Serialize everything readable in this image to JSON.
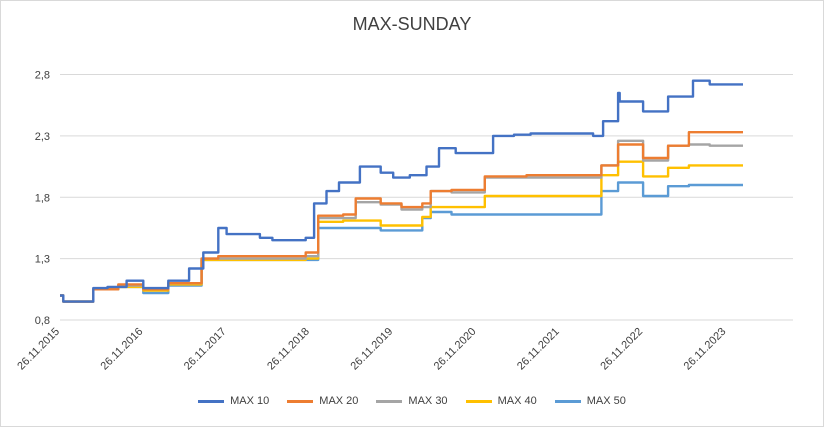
{
  "chart_data": {
    "type": "line",
    "title": "MAX-SUNDAY",
    "xlabel": "",
    "ylabel": "",
    "ylim": [
      0.8,
      3.0
    ],
    "yticks": [
      "0,8",
      "1,3",
      "1,8",
      "2,3",
      "2,8"
    ],
    "yticks_values": [
      0.8,
      1.3,
      1.8,
      2.3,
      2.8
    ],
    "xticks": [
      "26.11.2015",
      "26.11.2016",
      "26.11.2017",
      "26.11.2018",
      "26.11.2019",
      "26.11.2020",
      "26.11.2021",
      "26.11.2022",
      "26.11.2023"
    ],
    "xlim": [
      2015.9,
      2024.7
    ],
    "grid": "horizontal",
    "legend_position": "bottom",
    "series": [
      {
        "name": "MAX 10",
        "color": "#4472C4",
        "points": [
          [
            2015.9,
            1.0
          ],
          [
            2015.94,
            0.95
          ],
          [
            2016.3,
            1.06
          ],
          [
            2016.47,
            1.07
          ],
          [
            2016.7,
            1.12
          ],
          [
            2016.9,
            1.06
          ],
          [
            2017.2,
            1.12
          ],
          [
            2017.45,
            1.22
          ],
          [
            2017.62,
            1.35
          ],
          [
            2017.8,
            1.55
          ],
          [
            2017.9,
            1.5
          ],
          [
            2018.3,
            1.47
          ],
          [
            2018.45,
            1.45
          ],
          [
            2018.85,
            1.47
          ],
          [
            2018.95,
            1.75
          ],
          [
            2019.1,
            1.85
          ],
          [
            2019.25,
            1.92
          ],
          [
            2019.5,
            2.05
          ],
          [
            2019.75,
            2.0
          ],
          [
            2019.9,
            1.96
          ],
          [
            2020.1,
            1.98
          ],
          [
            2020.3,
            2.05
          ],
          [
            2020.45,
            2.2
          ],
          [
            2020.65,
            2.16
          ],
          [
            2021.0,
            2.16
          ],
          [
            2021.1,
            2.3
          ],
          [
            2021.35,
            2.31
          ],
          [
            2021.55,
            2.32
          ],
          [
            2022.0,
            2.32
          ],
          [
            2022.3,
            2.3
          ],
          [
            2022.42,
            2.42
          ],
          [
            2022.6,
            2.65
          ],
          [
            2022.62,
            2.58
          ],
          [
            2022.9,
            2.5
          ],
          [
            2023.2,
            2.62
          ],
          [
            2023.5,
            2.75
          ],
          [
            2023.7,
            2.72
          ],
          [
            2024.1,
            2.72
          ]
        ]
      },
      {
        "name": "MAX 20",
        "color": "#ED7D31",
        "points": [
          [
            2015.9,
            1.0
          ],
          [
            2015.94,
            0.95
          ],
          [
            2016.3,
            1.05
          ],
          [
            2016.6,
            1.09
          ],
          [
            2016.9,
            1.05
          ],
          [
            2017.2,
            1.1
          ],
          [
            2017.6,
            1.3
          ],
          [
            2017.8,
            1.32
          ],
          [
            2018.2,
            1.32
          ],
          [
            2018.85,
            1.35
          ],
          [
            2019.0,
            1.65
          ],
          [
            2019.3,
            1.66
          ],
          [
            2019.45,
            1.79
          ],
          [
            2019.75,
            1.75
          ],
          [
            2020.0,
            1.72
          ],
          [
            2020.25,
            1.75
          ],
          [
            2020.35,
            1.85
          ],
          [
            2020.6,
            1.86
          ],
          [
            2020.8,
            1.86
          ],
          [
            2021.0,
            1.97
          ],
          [
            2021.5,
            1.98
          ],
          [
            2022.2,
            1.98
          ],
          [
            2022.4,
            2.06
          ],
          [
            2022.6,
            2.23
          ],
          [
            2022.9,
            2.12
          ],
          [
            2023.2,
            2.22
          ],
          [
            2023.45,
            2.33
          ],
          [
            2023.7,
            2.33
          ],
          [
            2024.1,
            2.33
          ]
        ]
      },
      {
        "name": "MAX 30",
        "color": "#A5A5A5",
        "points": [
          [
            2015.9,
            1.0
          ],
          [
            2015.94,
            0.95
          ],
          [
            2016.3,
            1.05
          ],
          [
            2016.6,
            1.08
          ],
          [
            2016.9,
            1.05
          ],
          [
            2017.2,
            1.1
          ],
          [
            2017.6,
            1.3
          ],
          [
            2017.8,
            1.3
          ],
          [
            2018.2,
            1.3
          ],
          [
            2018.85,
            1.32
          ],
          [
            2019.0,
            1.63
          ],
          [
            2019.3,
            1.63
          ],
          [
            2019.45,
            1.76
          ],
          [
            2019.75,
            1.74
          ],
          [
            2020.0,
            1.7
          ],
          [
            2020.25,
            1.72
          ],
          [
            2020.35,
            1.85
          ],
          [
            2020.6,
            1.84
          ],
          [
            2020.8,
            1.84
          ],
          [
            2021.0,
            1.96
          ],
          [
            2021.5,
            1.96
          ],
          [
            2022.2,
            1.96
          ],
          [
            2022.4,
            2.06
          ],
          [
            2022.6,
            2.26
          ],
          [
            2022.9,
            2.1
          ],
          [
            2023.2,
            2.22
          ],
          [
            2023.45,
            2.23
          ],
          [
            2023.7,
            2.22
          ],
          [
            2024.1,
            2.22
          ]
        ]
      },
      {
        "name": "MAX 40",
        "color": "#FFC000",
        "points": [
          [
            2015.9,
            1.0
          ],
          [
            2015.94,
            0.95
          ],
          [
            2016.3,
            1.05
          ],
          [
            2016.6,
            1.07
          ],
          [
            2016.9,
            1.04
          ],
          [
            2017.2,
            1.09
          ],
          [
            2017.6,
            1.29
          ],
          [
            2017.8,
            1.29
          ],
          [
            2018.2,
            1.29
          ],
          [
            2018.85,
            1.3
          ],
          [
            2019.0,
            1.6
          ],
          [
            2019.3,
            1.61
          ],
          [
            2019.45,
            1.61
          ],
          [
            2019.75,
            1.57
          ],
          [
            2020.0,
            1.57
          ],
          [
            2020.25,
            1.64
          ],
          [
            2020.35,
            1.72
          ],
          [
            2020.6,
            1.72
          ],
          [
            2020.8,
            1.72
          ],
          [
            2021.0,
            1.81
          ],
          [
            2021.5,
            1.81
          ],
          [
            2022.2,
            1.81
          ],
          [
            2022.4,
            1.98
          ],
          [
            2022.6,
            2.09
          ],
          [
            2022.9,
            1.97
          ],
          [
            2023.2,
            2.04
          ],
          [
            2023.45,
            2.06
          ],
          [
            2023.7,
            2.06
          ],
          [
            2024.1,
            2.06
          ]
        ]
      },
      {
        "name": "MAX 50",
        "color": "#5B9BD5",
        "points": [
          [
            2015.9,
            1.0
          ],
          [
            2015.94,
            0.95
          ],
          [
            2016.3,
            1.05
          ],
          [
            2016.6,
            1.07
          ],
          [
            2016.9,
            1.02
          ],
          [
            2017.2,
            1.08
          ],
          [
            2017.6,
            1.29
          ],
          [
            2017.8,
            1.29
          ],
          [
            2018.2,
            1.29
          ],
          [
            2018.85,
            1.29
          ],
          [
            2019.0,
            1.55
          ],
          [
            2019.3,
            1.55
          ],
          [
            2019.45,
            1.55
          ],
          [
            2019.75,
            1.53
          ],
          [
            2020.0,
            1.53
          ],
          [
            2020.25,
            1.63
          ],
          [
            2020.35,
            1.68
          ],
          [
            2020.6,
            1.66
          ],
          [
            2020.8,
            1.66
          ],
          [
            2021.0,
            1.66
          ],
          [
            2021.5,
            1.66
          ],
          [
            2022.2,
            1.66
          ],
          [
            2022.4,
            1.85
          ],
          [
            2022.6,
            1.92
          ],
          [
            2022.9,
            1.81
          ],
          [
            2023.2,
            1.89
          ],
          [
            2023.45,
            1.9
          ],
          [
            2023.7,
            1.9
          ],
          [
            2024.1,
            1.9
          ]
        ]
      }
    ]
  }
}
